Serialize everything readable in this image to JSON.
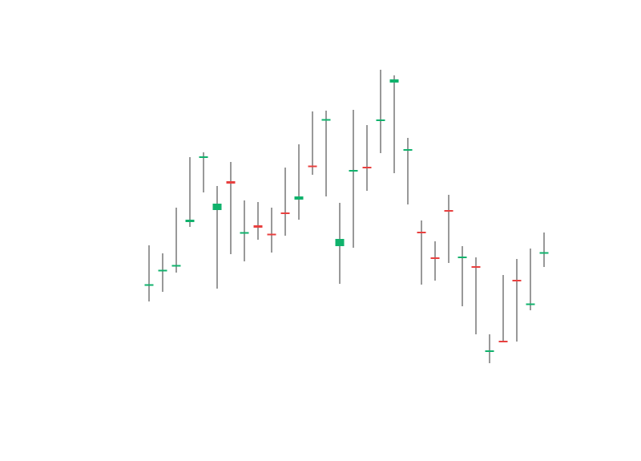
{
  "chart_data": {
    "type": "candlestick",
    "title": "",
    "xlabel": "",
    "ylabel": "",
    "axes_visible": false,
    "grid": false,
    "colors": {
      "up": "#10b26c",
      "down": "#e8403f",
      "wick": "#555555"
    },
    "ylim": [
      0,
      575
    ],
    "candles": [
      {
        "o": 219,
        "h": 269,
        "l": 199,
        "c": 220
      },
      {
        "o": 237,
        "h": 259,
        "l": 211,
        "c": 238
      },
      {
        "o": 243,
        "h": 316,
        "l": 235,
        "c": 244
      },
      {
        "o": 298,
        "h": 379,
        "l": 292,
        "c": 301
      },
      {
        "o": 378,
        "h": 385,
        "l": 335,
        "c": 380
      },
      {
        "o": 313,
        "h": 343,
        "l": 215,
        "c": 321
      },
      {
        "o": 349,
        "h": 373,
        "l": 258,
        "c": 346
      },
      {
        "o": 284,
        "h": 325,
        "l": 249,
        "c": 285
      },
      {
        "o": 294,
        "h": 323,
        "l": 276,
        "c": 291
      },
      {
        "o": 283,
        "h": 316,
        "l": 260,
        "c": 282
      },
      {
        "o": 310,
        "h": 366,
        "l": 281,
        "c": 308
      },
      {
        "o": 326,
        "h": 395,
        "l": 301,
        "c": 330
      },
      {
        "o": 368,
        "h": 436,
        "l": 357,
        "c": 367
      },
      {
        "o": 425,
        "h": 437,
        "l": 330,
        "c": 426
      },
      {
        "o": 268,
        "h": 322,
        "l": 221,
        "c": 277
      },
      {
        "o": 361,
        "h": 438,
        "l": 266,
        "c": 363
      },
      {
        "o": 367,
        "h": 419,
        "l": 337,
        "c": 365
      },
      {
        "o": 424,
        "h": 488,
        "l": 384,
        "c": 426
      },
      {
        "o": 472,
        "h": 481,
        "l": 359,
        "c": 476
      },
      {
        "o": 387,
        "h": 403,
        "l": 320,
        "c": 389
      },
      {
        "o": 286,
        "h": 300,
        "l": 220,
        "c": 284
      },
      {
        "o": 254,
        "h": 274,
        "l": 225,
        "c": 252
      },
      {
        "o": 313,
        "h": 332,
        "l": 247,
        "c": 311
      },
      {
        "o": 253,
        "h": 268,
        "l": 193,
        "c": 255
      },
      {
        "o": 243,
        "h": 254,
        "l": 158,
        "c": 241
      },
      {
        "o": 136,
        "h": 158,
        "l": 122,
        "c": 138
      },
      {
        "o": 150,
        "h": 232,
        "l": 148,
        "c": 148
      },
      {
        "o": 226,
        "h": 252,
        "l": 149,
        "c": 224
      },
      {
        "o": 195,
        "h": 265,
        "l": 188,
        "c": 196
      },
      {
        "o": 259,
        "h": 285,
        "l": 242,
        "c": 260
      }
    ]
  }
}
